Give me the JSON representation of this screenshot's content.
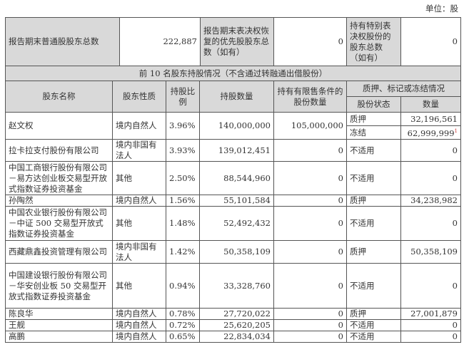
{
  "unit": "单位：股",
  "summary": {
    "total_label": "报告期末普通股股东总数",
    "total_value": "222,887",
    "pref_label": "报告期末表决权恢复的优先股股东总数（如有）",
    "pref_value": "0",
    "special_label": "持有特别表决权股份的股东总数（如有）",
    "special_value": "0"
  },
  "section_title": "前 10 名股东持股情况（不含通过转融通出借股份）",
  "headers": {
    "name": "股东名称",
    "nature": "股东性质",
    "ratio": "持股比例",
    "shares": "持股数量",
    "restricted": "持有有限售条件的股份数量",
    "pledge": "质押、标记或冻结情况",
    "status": "股份状态",
    "amount": "数量"
  },
  "rows": [
    {
      "name": "赵文权",
      "nature": "境内自然人",
      "ratio": "3.96%",
      "shares": "140,000,000",
      "restricted": "105,000,000",
      "status": "质押",
      "amount": "32,196,561",
      "status2": "冻结",
      "amount2": "62,999,999",
      "note": "1"
    },
    {
      "name": "拉卡拉支付股份有限公司",
      "nature": "境内非国有法人",
      "ratio": "3.93%",
      "shares": "139,012,451",
      "restricted": "0",
      "status": "不适用",
      "amount": "0"
    },
    {
      "name": "中国工商银行股份有限公司－易方达创业板交易型开放式指数证券投资基金",
      "nature": "其他",
      "ratio": "2.50%",
      "shares": "88,544,960",
      "restricted": "0",
      "status": "不适用",
      "amount": "0"
    },
    {
      "name": "孙陶然",
      "nature": "境内自然人",
      "ratio": "1.56%",
      "shares": "55,101,584",
      "restricted": "0",
      "status": "质押",
      "amount": "34,238,982"
    },
    {
      "name": "中国农业银行股份有限公司－中证 500 交易型开放式指数证券投资基金",
      "nature": "其他",
      "ratio": "1.48%",
      "shares": "52,492,432",
      "restricted": "0",
      "status": "不适用",
      "amount": "0"
    },
    {
      "name": "西藏鼎鑫投资管理有限公司",
      "nature": "境内非国有法人",
      "ratio": "1.42%",
      "shares": "50,358,109",
      "restricted": "0",
      "status": "质押",
      "amount": "50,358,109"
    },
    {
      "name": "中国建设银行股份有限公司－华安创业板 50 交易型开放式指数证券投资基金",
      "nature": "其他",
      "ratio": "0.94%",
      "shares": "33,328,760",
      "restricted": "0",
      "status": "不适用",
      "amount": "0"
    },
    {
      "name": "陈良华",
      "nature": "境内自然人",
      "ratio": "0.78%",
      "shares": "27,720,022",
      "restricted": "0",
      "status": "质押",
      "amount": "27,001,879"
    },
    {
      "name": "王舰",
      "nature": "境内自然人",
      "ratio": "0.72%",
      "shares": "25,620,205",
      "restricted": "0",
      "status": "不适用",
      "amount": "0"
    },
    {
      "name": "高鹏",
      "nature": "境内自然人",
      "ratio": "0.65%",
      "shares": "22,834,034",
      "restricted": "0",
      "status": "不适用",
      "amount": "0"
    }
  ]
}
